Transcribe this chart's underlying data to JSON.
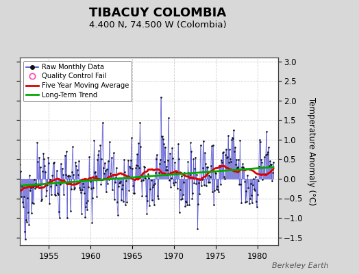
{
  "title": "TIBACUY COLOMBIA",
  "subtitle": "4.400 N, 74.500 W (Colombia)",
  "ylabel": "Temperature Anomaly (°C)",
  "watermark": "Berkeley Earth",
  "ylim": [
    -1.7,
    3.1
  ],
  "yticks": [
    -1.5,
    -1.0,
    -0.5,
    0.0,
    0.5,
    1.0,
    1.5,
    2.0,
    2.5,
    3.0
  ],
  "xlim": [
    1951.5,
    1982.5
  ],
  "xticks": [
    1955,
    1960,
    1965,
    1970,
    1975,
    1980
  ],
  "start_year": 1951,
  "num_months": 372,
  "raw_seed": 42,
  "bg_color": "#d8d8d8",
  "plot_bg": "#ffffff",
  "raw_line_color": "#4444cc",
  "raw_marker_color": "#111111",
  "moving_avg_color": "#dd0000",
  "trend_color": "#00aa00",
  "legend_qc_color": "#ff44aa",
  "title_fontsize": 13,
  "subtitle_fontsize": 9.5,
  "axis_fontsize": 8.5,
  "tick_fontsize": 8.5,
  "watermark_fontsize": 8
}
